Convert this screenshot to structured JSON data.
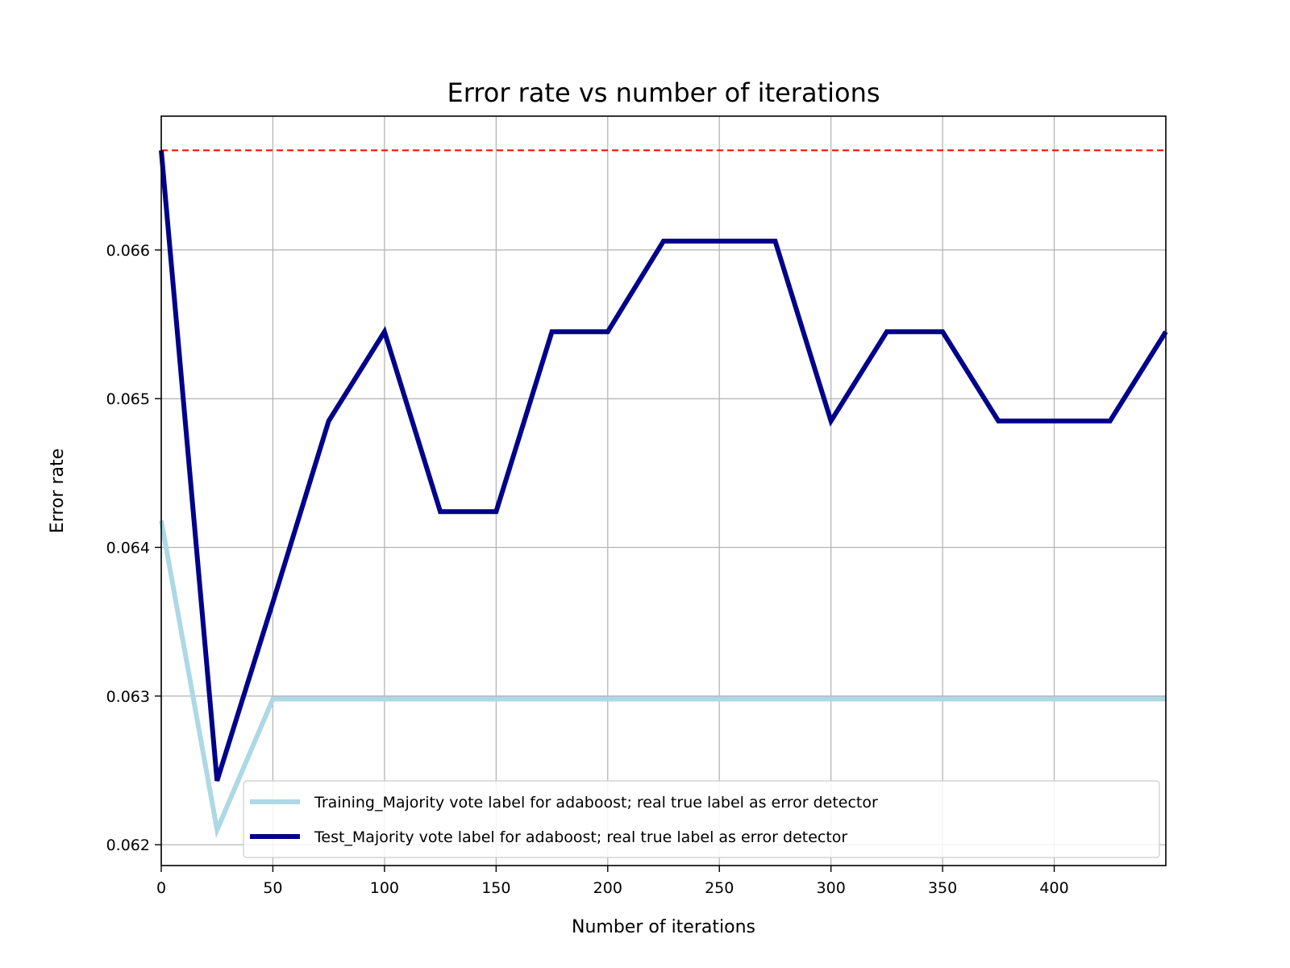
{
  "chart_data": {
    "type": "line",
    "title": "Error rate vs number of iterations",
    "xlabel": "Number of iterations",
    "ylabel": "Error rate",
    "xlim": [
      0,
      450
    ],
    "ylim": [
      0.06186,
      0.0669
    ],
    "xticks": [
      0,
      50,
      100,
      150,
      200,
      250,
      300,
      350,
      400
    ],
    "yticks": [
      0.062,
      0.063,
      0.064,
      0.065,
      0.066
    ],
    "xtick_labels": [
      "0",
      "50",
      "100",
      "150",
      "200",
      "250",
      "300",
      "350",
      "400"
    ],
    "ytick_labels": [
      "0.062",
      "0.063",
      "0.064",
      "0.065",
      "0.066"
    ],
    "grid": true,
    "legend_position": "lower-right",
    "baseline": {
      "y": 0.06667,
      "color": "#ff0000",
      "style": "dashed"
    },
    "series": [
      {
        "name": "Training_Majority vote label for adaboost; real true label as error detector",
        "color": "#add8e6",
        "x": [
          0,
          25,
          50,
          75,
          100,
          125,
          150,
          175,
          200,
          225,
          250,
          275,
          300,
          325,
          350,
          375,
          400,
          425,
          450
        ],
        "values": [
          0.06418,
          0.0621,
          0.06298,
          0.06298,
          0.06298,
          0.06298,
          0.06298,
          0.06298,
          0.06298,
          0.06298,
          0.06298,
          0.06298,
          0.06298,
          0.06298,
          0.06298,
          0.06298,
          0.06298,
          0.06298,
          0.06298
        ]
      },
      {
        "name": "Test_Majority vote label for adaboost; real true label as error detector",
        "color": "#00008b",
        "x": [
          0,
          25,
          50,
          75,
          100,
          125,
          150,
          175,
          200,
          225,
          250,
          275,
          300,
          325,
          350,
          375,
          400,
          425,
          450
        ],
        "values": [
          0.06667,
          0.06243,
          0.06363,
          0.06485,
          0.06545,
          0.06424,
          0.06424,
          0.06545,
          0.06545,
          0.06606,
          0.06606,
          0.06606,
          0.06485,
          0.06545,
          0.06545,
          0.06485,
          0.06485,
          0.06485,
          0.06545
        ]
      }
    ]
  }
}
